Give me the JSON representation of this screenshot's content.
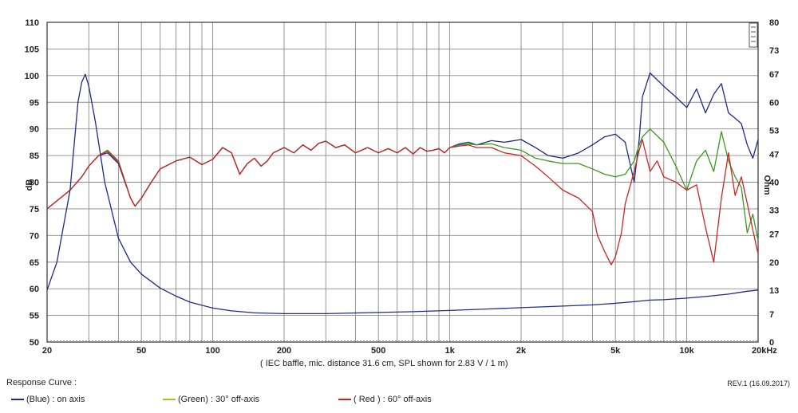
{
  "chart_data": {
    "type": "line",
    "title": "",
    "xlabel": "",
    "ylabel": "dB",
    "y2label": "Ohm",
    "x_scale": "log",
    "xlim": [
      20,
      20000
    ],
    "ylim": [
      50,
      110
    ],
    "y2lim": [
      0,
      80
    ],
    "grid": true,
    "x_ticks": [
      {
        "value": 20,
        "label": "20"
      },
      {
        "value": 50,
        "label": "50"
      },
      {
        "value": 100,
        "label": "100"
      },
      {
        "value": 200,
        "label": "200"
      },
      {
        "value": 500,
        "label": "500"
      },
      {
        "value": 1000,
        "label": "1k"
      },
      {
        "value": 2000,
        "label": "2k"
      },
      {
        "value": 5000,
        "label": "5k"
      },
      {
        "value": 10000,
        "label": "10k"
      },
      {
        "value": 20000,
        "label": "20kHz"
      }
    ],
    "y_ticks": [
      {
        "value": 110,
        "label": "110"
      },
      {
        "value": 105,
        "label": "105"
      },
      {
        "value": 100,
        "label": "100"
      },
      {
        "value": 95,
        "label": "95"
      },
      {
        "value": 90,
        "label": "90"
      },
      {
        "value": 85,
        "label": "85"
      },
      {
        "value": 80,
        "label": "80"
      },
      {
        "value": 75,
        "label": "75"
      },
      {
        "value": 70,
        "label": "70"
      },
      {
        "value": 65,
        "label": "65"
      },
      {
        "value": 60,
        "label": "60"
      },
      {
        "value": 55,
        "label": "55"
      },
      {
        "value": 50,
        "label": "50"
      }
    ],
    "y2_ticks": [
      {
        "value": 80,
        "label": "80"
      },
      {
        "value": 73,
        "label": "73"
      },
      {
        "value": 67,
        "label": "67"
      },
      {
        "value": 60,
        "label": "60"
      },
      {
        "value": 53,
        "label": "53"
      },
      {
        "value": 47,
        "label": "47"
      },
      {
        "value": 40,
        "label": "40"
      },
      {
        "value": 33,
        "label": "33"
      },
      {
        "value": 27,
        "label": "27"
      },
      {
        "value": 20,
        "label": "20"
      },
      {
        "value": 13,
        "label": "13"
      },
      {
        "value": 7,
        "label": "7"
      },
      {
        "value": 0,
        "label": "0"
      }
    ],
    "note": "( IEC baffle, mic. distance 31.6 cm, SPL shown for 2.83 V / 1 m)",
    "series": [
      {
        "name": "on axis",
        "color": "#1f2a8a",
        "axis": "left",
        "x": [
          20,
          22,
          25,
          28,
          30,
          33,
          36,
          40,
          45,
          47,
          50,
          55,
          60,
          70,
          80,
          90,
          100,
          110,
          120,
          130,
          140,
          150,
          160,
          170,
          180,
          200,
          220,
          240,
          260,
          280,
          300,
          330,
          360,
          400,
          450,
          500,
          550,
          600,
          650,
          700,
          750,
          800,
          850,
          900,
          950,
          1000,
          1100,
          1200,
          1300,
          1500,
          1700,
          2000,
          2300,
          2600,
          3000,
          3500,
          4000,
          4500,
          5000,
          5500,
          6000,
          6300,
          6500,
          7000,
          8000,
          9000,
          10000,
          11000,
          12000,
          13000,
          14000,
          15000,
          16000,
          17000,
          18000,
          19000,
          20000
        ],
        "y": [
          75,
          76.5,
          78.5,
          81,
          83,
          85,
          85.5,
          83.5,
          77,
          75.5,
          77,
          80,
          82.5,
          84,
          84.7,
          83.3,
          84.3,
          86.5,
          85.5,
          81.5,
          83.5,
          84.5,
          83,
          84,
          85.5,
          86.5,
          85.5,
          87,
          86,
          87.3,
          87.7,
          86.5,
          87,
          85.5,
          86.5,
          85.5,
          86.3,
          85.5,
          86.5,
          85.3,
          86.5,
          85.8,
          86,
          86.3,
          85.5,
          86.5,
          87.2,
          87.5,
          87,
          87.8,
          87.5,
          88,
          86.5,
          85,
          84.5,
          85.5,
          87,
          88.5,
          89,
          87.5,
          80,
          88,
          96,
          100.5,
          98,
          96,
          94,
          97.5,
          93,
          96.5,
          98.5,
          93,
          92,
          91,
          87,
          84.5,
          88
        ]
      },
      {
        "name": "30° off-axis",
        "color": "#3a9a1e",
        "axis": "left",
        "x": [
          20,
          22,
          25,
          28,
          30,
          33,
          36,
          40,
          45,
          47,
          50,
          55,
          60,
          70,
          80,
          90,
          100,
          110,
          120,
          130,
          140,
          150,
          160,
          170,
          180,
          200,
          220,
          240,
          260,
          280,
          300,
          330,
          360,
          400,
          450,
          500,
          550,
          600,
          650,
          700,
          750,
          800,
          850,
          900,
          950,
          1000,
          1100,
          1200,
          1300,
          1500,
          1700,
          2000,
          2300,
          2600,
          3000,
          3500,
          4000,
          4500,
          5000,
          5500,
          6000,
          6300,
          6500,
          7000,
          8000,
          9000,
          10000,
          11000,
          12000,
          13000,
          14000,
          15000,
          16000,
          17000,
          18000,
          19000,
          20000
        ],
        "y": [
          75,
          76.5,
          78.5,
          81,
          83,
          85,
          86,
          84,
          77,
          75.5,
          77,
          80,
          82.5,
          84,
          84.7,
          83.3,
          84.3,
          86.5,
          85.5,
          81.5,
          83.5,
          84.5,
          83,
          84,
          85.5,
          86.5,
          85.5,
          87,
          86,
          87.3,
          87.7,
          86.5,
          87,
          85.5,
          86.5,
          85.5,
          86.3,
          85.5,
          86.5,
          85.3,
          86.5,
          85.8,
          86,
          86.3,
          85.5,
          86.5,
          87,
          87.2,
          87,
          87.2,
          86.5,
          86,
          84.5,
          84,
          83.5,
          83.5,
          82.5,
          81.5,
          81,
          81.5,
          84,
          87,
          88.5,
          90,
          87.5,
          83,
          78.5,
          84,
          86,
          82,
          89.5,
          84,
          81,
          79,
          70.5,
          74,
          69
        ]
      },
      {
        "name": "60° off-axis",
        "color": "#d02424",
        "axis": "left",
        "x": [
          20,
          22,
          25,
          28,
          30,
          33,
          36,
          40,
          45,
          47,
          50,
          55,
          60,
          70,
          80,
          90,
          100,
          110,
          120,
          130,
          140,
          150,
          160,
          170,
          180,
          200,
          220,
          240,
          260,
          280,
          300,
          330,
          360,
          400,
          450,
          500,
          550,
          600,
          650,
          700,
          750,
          800,
          850,
          900,
          950,
          1000,
          1100,
          1200,
          1300,
          1500,
          1700,
          2000,
          2300,
          2600,
          3000,
          3500,
          4000,
          4200,
          4500,
          4800,
          5000,
          5300,
          5500,
          6000,
          6300,
          6500,
          7000,
          7500,
          8000,
          9000,
          10000,
          11000,
          12000,
          13000,
          14000,
          15000,
          16000,
          17000,
          18000,
          19000,
          20000
        ],
        "y": [
          75,
          76.5,
          78.5,
          81,
          83,
          85,
          85.8,
          83.8,
          77,
          75.5,
          77,
          80,
          82.5,
          84,
          84.7,
          83.3,
          84.3,
          86.5,
          85.5,
          81.5,
          83.5,
          84.5,
          83,
          84,
          85.5,
          86.5,
          85.5,
          87,
          86,
          87.3,
          87.7,
          86.5,
          87,
          85.5,
          86.5,
          85.5,
          86.3,
          85.5,
          86.5,
          85.3,
          86.5,
          85.8,
          86,
          86.3,
          85.5,
          86.5,
          86.8,
          87,
          86.5,
          86.5,
          85.5,
          85,
          83,
          81,
          78.5,
          77,
          74.5,
          70,
          67,
          64.5,
          66,
          70.5,
          76,
          82,
          86,
          88,
          82,
          84,
          81,
          80,
          78.5,
          79.5,
          71.5,
          65,
          77,
          85.5,
          77.5,
          81,
          76,
          71,
          66.5
        ]
      },
      {
        "name": "impedance",
        "color": "#1f2a8a",
        "axis": "right",
        "x": [
          20,
          22,
          25,
          27,
          28,
          29,
          30,
          32,
          35,
          40,
          45,
          50,
          60,
          70,
          80,
          100,
          120,
          150,
          200,
          300,
          500,
          700,
          1000,
          1500,
          2000,
          3000,
          4000,
          5000,
          6000,
          7000,
          8000,
          10000,
          12000,
          15000,
          18000,
          20000
        ],
        "y": [
          13,
          20,
          38,
          60,
          65,
          67,
          64,
          55,
          40,
          26,
          20,
          17,
          13.5,
          11.5,
          10,
          8.5,
          7.8,
          7.3,
          7.1,
          7.1,
          7.4,
          7.6,
          7.9,
          8.3,
          8.6,
          9,
          9.3,
          9.7,
          10.1,
          10.5,
          10.6,
          11,
          11.4,
          12,
          12.7,
          13
        ]
      }
    ]
  },
  "legend": {
    "title": "Response Curve :",
    "items": [
      {
        "label": "(Blue) : on axis",
        "color": "#1f2a8a"
      },
      {
        "label": "(Green) : 30° off-axis",
        "color": "#a6c43a"
      },
      {
        "label": "( Red ) : 60° off-axis",
        "color": "#c82020"
      }
    ]
  },
  "revision": "REV.1 (16.09.2017)",
  "colors": {
    "grid": "#8a8a8a",
    "minor_grid": "#b4b4b4",
    "frame": "#333333",
    "baseline": "#7ac943"
  }
}
